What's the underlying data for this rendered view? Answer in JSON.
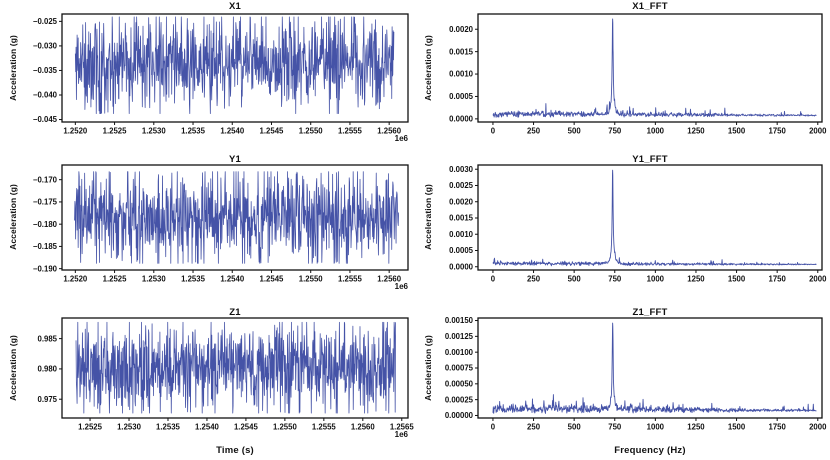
{
  "figure": {
    "background": "#ffffff",
    "line_color": "#3b4aa2",
    "axis_color": "#111111",
    "text_color": "#111111"
  },
  "chart_data": [
    {
      "type": "line",
      "title": "X1",
      "ylabel": "Acceleration (g)",
      "xlabel": "",
      "x_offset_label": "1e6",
      "xlim": [
        1251830,
        1256240
      ],
      "ylim": [
        -0.0455,
        -0.0235
      ],
      "x_tick_values": [
        1252000,
        1252500,
        1253000,
        1253500,
        1254000,
        1254500,
        1255000,
        1255500,
        1256000
      ],
      "x_tick_labels": [
        "1.2520",
        "1.2525",
        "1.2530",
        "1.2535",
        "1.2540",
        "1.2545",
        "1.2550",
        "1.2555",
        "1.2560"
      ],
      "y_tick_values": [
        -0.025,
        -0.03,
        -0.035,
        -0.04,
        -0.045
      ],
      "y_tick_labels": [
        "−0.025",
        "−0.030",
        "−0.035",
        "−0.040",
        "−0.045"
      ],
      "signal": {
        "kind": "noise",
        "n": 900,
        "x_start": 1252000,
        "x_end": 1256060,
        "mean": -0.0334,
        "min": -0.0438,
        "max": -0.0241
      }
    },
    {
      "type": "line",
      "title": "X1_FFT",
      "ylabel": "Acceleration (g)",
      "xlabel": "",
      "x_offset_label": "",
      "xlim": [
        -92,
        2026
      ],
      "ylim": [
        -7e-05,
        0.00234
      ],
      "x_tick_values": [
        0,
        250,
        500,
        750,
        1000,
        1250,
        1500,
        1750,
        2000
      ],
      "x_tick_labels": [
        "0",
        "250",
        "500",
        "750",
        "1000",
        "1250",
        "1500",
        "1750",
        "2000"
      ],
      "y_tick_values": [
        0.0,
        0.0005,
        0.001,
        0.0015,
        0.002
      ],
      "y_tick_labels": [
        "0.0000",
        "0.0005",
        "0.0010",
        "0.0015",
        "0.0020"
      ],
      "signal": {
        "kind": "fft",
        "n": 820,
        "x_start": 0,
        "x_end": 1992,
        "floor": 0.00013,
        "peak_x": 737,
        "peak_y": 0.00223
      }
    },
    {
      "type": "line",
      "title": "Y1",
      "ylabel": "Acceleration (g)",
      "xlabel": "",
      "x_offset_label": "1e6",
      "xlim": [
        1251830,
        1256240
      ],
      "ylim": [
        -0.1903,
        -0.1667
      ],
      "x_tick_values": [
        1252000,
        1252500,
        1253000,
        1253500,
        1254000,
        1254500,
        1255000,
        1255500,
        1256000
      ],
      "x_tick_labels": [
        "1.2520",
        "1.2525",
        "1.2530",
        "1.2535",
        "1.2540",
        "1.2545",
        "1.2550",
        "1.2555",
        "1.2560"
      ],
      "y_tick_values": [
        -0.17,
        -0.175,
        -0.18,
        -0.185,
        -0.19
      ],
      "y_tick_labels": [
        "−0.170",
        "−0.175",
        "−0.180",
        "−0.185",
        "−0.190"
      ],
      "signal": {
        "kind": "noise",
        "n": 900,
        "x_start": 1251990,
        "x_end": 1256120,
        "mean": -0.1786,
        "min": -0.1888,
        "max": -0.1682
      }
    },
    {
      "type": "line",
      "title": "Y1_FFT",
      "ylabel": "Acceleration (g)",
      "xlabel": "",
      "x_offset_label": "",
      "xlim": [
        -92,
        2026
      ],
      "ylim": [
        -0.0001,
        0.00313
      ],
      "x_tick_values": [
        0,
        250,
        500,
        750,
        1000,
        1250,
        1500,
        1750,
        2000
      ],
      "x_tick_labels": [
        "0",
        "250",
        "500",
        "750",
        "1000",
        "1250",
        "1500",
        "1750",
        "2000"
      ],
      "y_tick_values": [
        0.0,
        0.0005,
        0.001,
        0.0015,
        0.002,
        0.0025,
        0.003
      ],
      "y_tick_labels": [
        "0.0000",
        "0.0005",
        "0.0010",
        "0.0015",
        "0.0020",
        "0.0025",
        "0.0030"
      ],
      "signal": {
        "kind": "fft",
        "n": 820,
        "x_start": 0,
        "x_end": 1992,
        "floor": 0.00012,
        "peak_x": 737,
        "peak_y": 0.00297
      }
    },
    {
      "type": "line",
      "title": "Z1",
      "ylabel": "Acceleration (g)",
      "xlabel": "Time (s)",
      "x_offset_label": "1e6",
      "xlim": [
        1252140,
        1256580
      ],
      "ylim": [
        0.9719,
        0.9884
      ],
      "x_tick_values": [
        1252500,
        1253000,
        1253500,
        1254000,
        1254500,
        1255000,
        1255500,
        1256000,
        1256500
      ],
      "x_tick_labels": [
        "1.2525",
        "1.2530",
        "1.2535",
        "1.2540",
        "1.2545",
        "1.2550",
        "1.2555",
        "1.2560",
        "1.2565"
      ],
      "y_tick_values": [
        0.975,
        0.98,
        0.985
      ],
      "y_tick_labels": [
        "0.975",
        "0.980",
        "0.985"
      ],
      "signal": {
        "kind": "noise",
        "n": 900,
        "x_start": 1252320,
        "x_end": 1256420,
        "mean": 0.9802,
        "min": 0.9727,
        "max": 0.9877
      }
    },
    {
      "type": "line",
      "title": "Z1_FFT",
      "ylabel": "Acceleration (g)",
      "xlabel": "Frequency (Hz)",
      "x_offset_label": "",
      "xlim": [
        -92,
        2026
      ],
      "ylim": [
        -4e-05,
        0.00154
      ],
      "x_tick_values": [
        0,
        250,
        500,
        750,
        1000,
        1250,
        1500,
        1750,
        2000
      ],
      "x_tick_labels": [
        "0",
        "250",
        "500",
        "750",
        "1000",
        "1250",
        "1500",
        "1750",
        "2000"
      ],
      "y_tick_values": [
        0.0,
        0.00025,
        0.0005,
        0.00075,
        0.001,
        0.00125,
        0.0015
      ],
      "y_tick_labels": [
        "0.00000",
        "0.00025",
        "0.00050",
        "0.00075",
        "0.00100",
        "0.00125",
        "0.00150"
      ],
      "signal": {
        "kind": "fft",
        "n": 820,
        "x_start": 0,
        "x_end": 1992,
        "floor": 0.00013,
        "peak_x": 737,
        "peak_y": 0.00146
      }
    }
  ]
}
